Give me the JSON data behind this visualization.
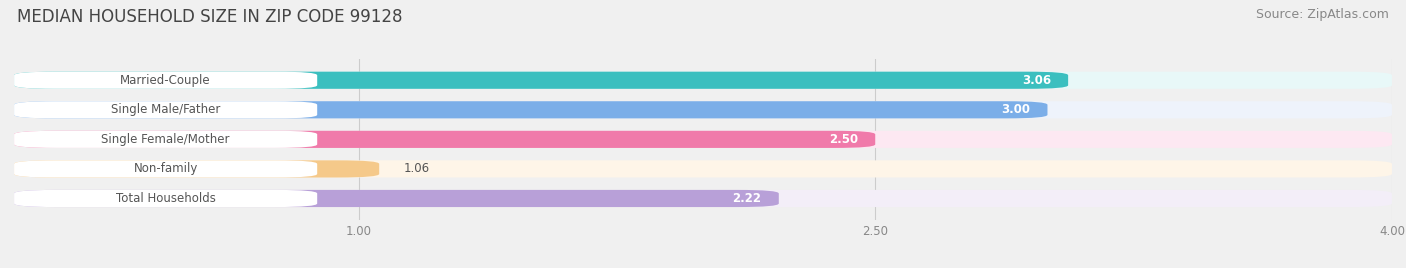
{
  "title": "MEDIAN HOUSEHOLD SIZE IN ZIP CODE 99128",
  "source": "Source: ZipAtlas.com",
  "categories": [
    "Married-Couple",
    "Single Male/Father",
    "Single Female/Mother",
    "Non-family",
    "Total Households"
  ],
  "values": [
    3.06,
    3.0,
    2.5,
    1.06,
    2.22
  ],
  "bar_colors": [
    "#3bbfbf",
    "#7baee8",
    "#f07aaa",
    "#f5c98a",
    "#b8a0d8"
  ],
  "bar_bg_colors": [
    "#e8f8f8",
    "#eef3fb",
    "#fde8f2",
    "#fef5e8",
    "#f3eef8"
  ],
  "xlim": [
    0,
    4.0
  ],
  "xticks": [
    1.0,
    2.5,
    4.0
  ],
  "value_label_inside_color": "#ffffff",
  "value_label_outside_color": "#555555",
  "inside_threshold": 2.0,
  "title_fontsize": 12,
  "source_fontsize": 9,
  "bar_height": 0.58,
  "background_color": "#f0f0f0",
  "label_box_color": "#ffffff",
  "label_text_color": "#555555",
  "grid_color": "#cccccc",
  "tick_color": "#888888"
}
